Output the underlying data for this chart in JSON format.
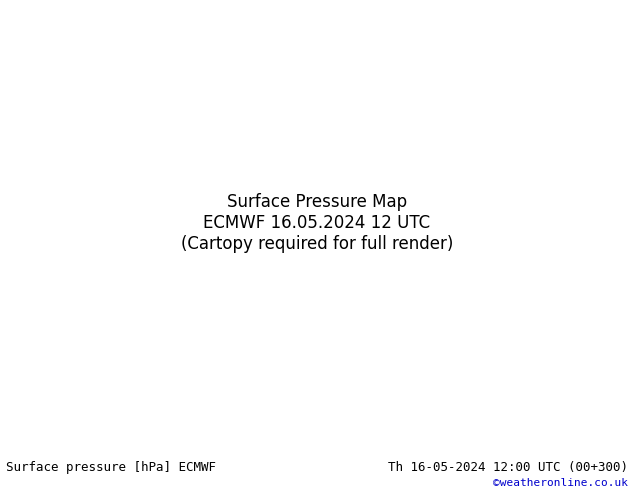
{
  "title_left": "Surface pressure [hPa] ECMWF",
  "title_right": "Th 16-05-2024 12:00 UTC (00+300)",
  "credit": "©weatheronline.co.uk",
  "bg_color": "#c8d8e8",
  "land_color": "#b8d8a0",
  "map_bg": "#c8d8e8",
  "footer_bg": "#ffffff",
  "footer_text_color": "#000000",
  "credit_color": "#0000cc",
  "figsize": [
    6.34,
    4.9
  ],
  "dpi": 100
}
